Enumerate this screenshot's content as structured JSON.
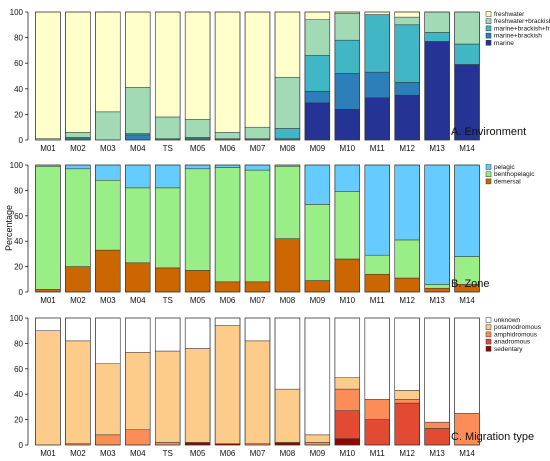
{
  "figure": {
    "ylabel": "Percentage"
  },
  "chart_data": [
    {
      "type": "bar",
      "stacked": true,
      "title": "A. Environment",
      "categories": [
        "M01",
        "M02",
        "M03",
        "M04",
        "TS",
        "M05",
        "M06",
        "M07",
        "M08",
        "M09",
        "M10",
        "M11",
        "M12",
        "M13",
        "M14"
      ],
      "ylim": [
        0,
        100
      ],
      "yticks": [
        0,
        20,
        40,
        60,
        80,
        100
      ],
      "legend": "top-right",
      "series": [
        {
          "name": "marine",
          "color": "#253494",
          "values": [
            0,
            0,
            0,
            0,
            0,
            0,
            0,
            0,
            0,
            29,
            24,
            33,
            35,
            77,
            59
          ]
        },
        {
          "name": "marine+brackish",
          "color": "#2c7fb8",
          "values": [
            0,
            1,
            0,
            4,
            1,
            1,
            1,
            1,
            1,
            9,
            28,
            20,
            10,
            0,
            0
          ]
        },
        {
          "name": "marine+brackish+freshwater",
          "color": "#41b6c4",
          "values": [
            0,
            1,
            0,
            1,
            0,
            1,
            0,
            0,
            8,
            28,
            26,
            45,
            45,
            7,
            16
          ]
        },
        {
          "name": "freshwater+brackish",
          "color": "#a1dab4",
          "values": [
            1,
            4,
            22,
            36,
            17,
            14,
            5,
            9,
            40,
            28,
            21,
            0,
            6,
            16,
            25
          ]
        },
        {
          "name": "freshwater",
          "color": "#ffffcc",
          "values": [
            99,
            94,
            78,
            59,
            82,
            84,
            94,
            90,
            51,
            6,
            1,
            2,
            4,
            0,
            0
          ]
        }
      ]
    },
    {
      "type": "bar",
      "stacked": true,
      "title": "B. Zone",
      "categories": [
        "M01",
        "M02",
        "M03",
        "M04",
        "TS",
        "M05",
        "M06",
        "M07",
        "M08",
        "M09",
        "M10",
        "M11",
        "M12",
        "M13",
        "M14"
      ],
      "ylim": [
        0,
        100
      ],
      "yticks": [
        0,
        20,
        40,
        60,
        80,
        100
      ],
      "legend": "top-right",
      "series": [
        {
          "name": "demersal",
          "color": "#cc6600",
          "values": [
            2,
            20,
            33,
            23,
            19,
            17,
            8,
            8,
            42,
            9,
            26,
            14,
            11,
            3,
            6
          ]
        },
        {
          "name": "benthopelagic",
          "color": "#99ee88",
          "values": [
            97,
            77,
            55,
            59,
            63,
            80,
            90,
            88,
            57,
            60,
            53,
            15,
            30,
            3,
            22
          ]
        },
        {
          "name": "pelagic",
          "color": "#66ccff",
          "values": [
            1,
            3,
            12,
            18,
            18,
            3,
            2,
            4,
            1,
            31,
            21,
            71,
            59,
            94,
            72
          ]
        }
      ]
    },
    {
      "type": "bar",
      "stacked": true,
      "title": "C. Migration type",
      "categories": [
        "M01",
        "M02",
        "M03",
        "M04",
        "TS",
        "M05",
        "M06",
        "M07",
        "M08",
        "M09",
        "M10",
        "M11",
        "M12",
        "M13",
        "M14"
      ],
      "ylim": [
        0,
        100
      ],
      "yticks": [
        0,
        20,
        40,
        60,
        80,
        100
      ],
      "legend": "top-right",
      "series": [
        {
          "name": "sedentary",
          "color": "#990000",
          "values": [
            0,
            0,
            0,
            0,
            0,
            2,
            1,
            0,
            2,
            0,
            5,
            0,
            0,
            0,
            0
          ]
        },
        {
          "name": "anadromous",
          "color": "#e34a33",
          "values": [
            0,
            0,
            0,
            0,
            0,
            0,
            0,
            0,
            0,
            0,
            22,
            20,
            33,
            13,
            0
          ]
        },
        {
          "name": "amphidromous",
          "color": "#fc8d59",
          "values": [
            0,
            1,
            8,
            12,
            2,
            0,
            0,
            1,
            0,
            2,
            17,
            16,
            3,
            5,
            25
          ]
        },
        {
          "name": "potamodromous",
          "color": "#fdcc8a",
          "values": [
            90,
            81,
            56,
            61,
            72,
            74,
            93,
            81,
            42,
            6,
            9,
            0,
            7,
            0,
            0
          ]
        },
        {
          "name": "unknown",
          "color": "#ffffff",
          "values": [
            10,
            18,
            36,
            27,
            26,
            24,
            6,
            18,
            56,
            92,
            47,
            64,
            57,
            82,
            75
          ]
        }
      ]
    }
  ]
}
